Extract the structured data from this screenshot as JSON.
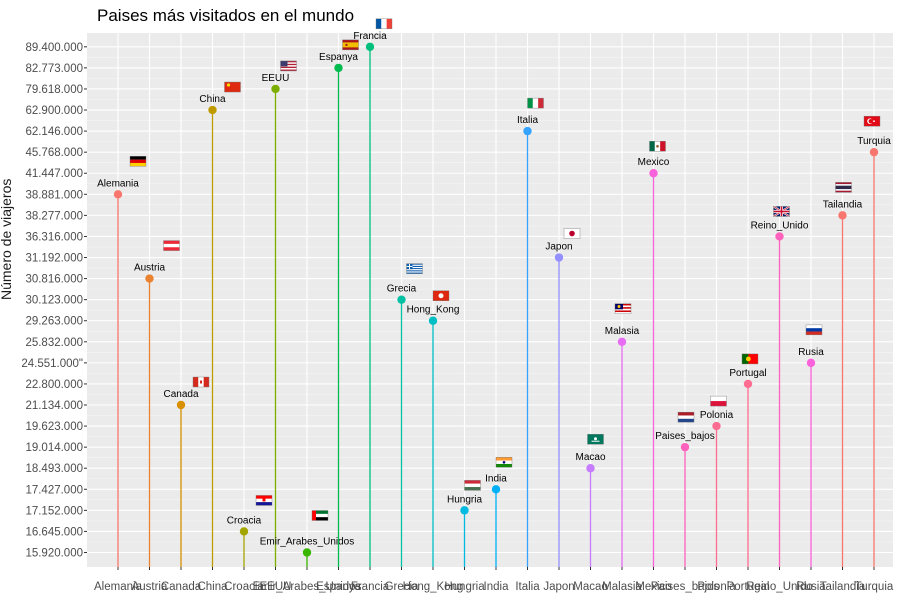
{
  "chart_data": {
    "type": "lollipop",
    "title": "Paises más visitados en el mundo",
    "xlabel": "",
    "ylabel": "Número de viajeros",
    "grid": true,
    "legend": "none",
    "y_ticks": [
      "15.920.000",
      "16.645.000",
      "17.152.000",
      "17.427.000",
      "18.493.000",
      "19.014.000",
      "19.623.000",
      "21.134.000",
      "22.800.000",
      "24.551.000\"",
      "25.832.000",
      "29.263.000",
      "30.123.000",
      "30.816.000",
      "31.192.000",
      "36.316.000",
      "38.277.000",
      "38.881.000",
      "41.447.000",
      "45.768.000",
      "62.146.000",
      "62.900.000",
      "79.618.000",
      "82.773.000",
      "89.400.000"
    ],
    "points": [
      {
        "country": "Alemania",
        "label": "Alemania",
        "value": "38.881.000",
        "color": "#F8766D",
        "flag": "de"
      },
      {
        "country": "Austria",
        "label": "Austria",
        "value": "30.816.000",
        "color": "#EA8331",
        "flag": "at"
      },
      {
        "country": "Canada",
        "label": "Canada",
        "value": "21.134.000",
        "color": "#D89000",
        "flag": "ca"
      },
      {
        "country": "China",
        "label": "China",
        "value": "62.900.000",
        "color": "#C09B00",
        "flag": "cn"
      },
      {
        "country": "Croacia",
        "label": "Croacia",
        "value": "16.645.000",
        "color": "#A3A500",
        "flag": "hr"
      },
      {
        "country": "EEUU",
        "label": "EEUU",
        "value": "79.618.000",
        "color": "#7CAE00",
        "flag": "us"
      },
      {
        "country": "Emir_Arabes_Unidos",
        "label": "Emir_Arabes_Unidos",
        "value": "15.920.000",
        "color": "#39B600",
        "flag": "ae"
      },
      {
        "country": "Espanya",
        "label": "Espanya",
        "value": "82.773.000",
        "color": "#00BB4E",
        "flag": "es"
      },
      {
        "country": "Francia",
        "label": "Francia",
        "value": "89.400.000",
        "color": "#00BF7D",
        "flag": "fr"
      },
      {
        "country": "Grecia",
        "label": "Grecia",
        "value": "30.123.000",
        "color": "#00C1A3",
        "flag": "gr"
      },
      {
        "country": "Hong_Kong",
        "label": "Hong_Kong",
        "value": "29.263.000",
        "color": "#00BFC4",
        "flag": "hk"
      },
      {
        "country": "Hungria",
        "label": "Hungria",
        "value": "17.152.000",
        "color": "#00BAE0",
        "flag": "hu"
      },
      {
        "country": "India",
        "label": "India",
        "value": "17.427.000",
        "color": "#00B0F6",
        "flag": "in"
      },
      {
        "country": "Italia",
        "label": "Italia",
        "value": "62.146.000",
        "color": "#35A2FF",
        "flag": "it"
      },
      {
        "country": "Japon",
        "label": "Japon",
        "value": "31.192.000",
        "color": "#9590FF",
        "flag": "jp"
      },
      {
        "country": "Macao",
        "label": "Macao",
        "value": "18.493.000",
        "color": "#C77CFF",
        "flag": "mo"
      },
      {
        "country": "Malasia",
        "label": "Malasia",
        "value": "25.832.000",
        "color": "#E76BF3",
        "flag": "my"
      },
      {
        "country": "Mexico",
        "label": "Mexico",
        "value": "41.447.000",
        "color": "#FA62DB",
        "flag": "mx"
      },
      {
        "country": "Paises_bajos",
        "label": "Paises_bajos",
        "value": "19.014.000",
        "color": "#FF62BC",
        "flag": "nl"
      },
      {
        "country": "Polonia",
        "label": "Polonia",
        "value": "19.623.000",
        "color": "#FF6C91",
        "flag": "pl"
      },
      {
        "country": "Portugal",
        "label": "Portugal",
        "value": "22.800.000",
        "color": "#FF6C91",
        "flag": "pt"
      },
      {
        "country": "Reino_Unido",
        "label": "Reino_Unido",
        "value": "36.316.000",
        "color": "#FF62BC",
        "flag": "gb"
      },
      {
        "country": "Rusia",
        "label": "Rusia",
        "value": "24.551.000\"",
        "color": "#FA62DB",
        "flag": "ru"
      },
      {
        "country": "Tailandia",
        "label": "Tailandia",
        "value": "38.277.000",
        "color": "#F8766D",
        "flag": "th"
      },
      {
        "country": "Turquia",
        "label": "Turquia",
        "value": "45.768.000",
        "color": "#F8766D",
        "flag": "tr"
      }
    ],
    "category_colors": [
      "#F8766D",
      "#EA8331",
      "#D89000",
      "#C09B00",
      "#A3A500",
      "#7CAE00",
      "#39B600",
      "#00BB4E",
      "#00BF7D",
      "#00C1A3",
      "#00BFC4",
      "#00BAE0",
      "#00B0F6",
      "#35A2FF",
      "#9590FF",
      "#C77CFF",
      "#E76BF3",
      "#FA62DB",
      "#FF62BC",
      "#FF6C91",
      "#FF6C91",
      "#FF62BC",
      "#FA62DB",
      "#F8766D",
      "#F8766D"
    ]
  }
}
